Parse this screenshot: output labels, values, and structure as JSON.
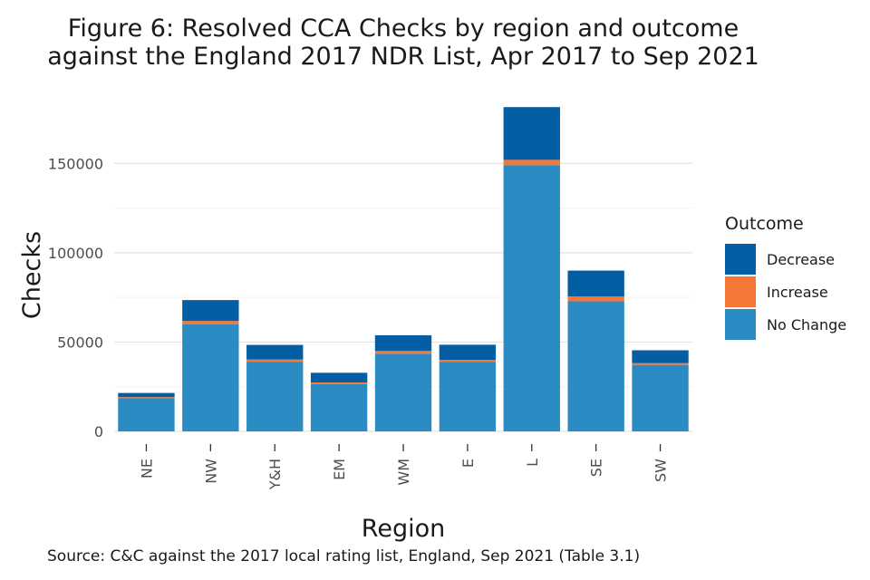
{
  "title_line1": "Figure 6: Resolved CCA Checks by region and outcome",
  "title_line2": "against the England 2017 NDR List, Apr 2017 to Sep 2021",
  "caption": "Source: C&C against the 2017 local rating list, England, Sep 2021 (Table 3.1)",
  "legend": {
    "title": "Outcome",
    "items": [
      {
        "label": "Decrease",
        "color": "#045ea4"
      },
      {
        "label": "Increase",
        "color": "#f47738"
      },
      {
        "label": "No Change",
        "color": "#2b8cc4"
      }
    ]
  },
  "chart_data": {
    "type": "bar",
    "stacked": true,
    "xlabel": "Region",
    "ylabel": "Checks",
    "ylim": [
      0,
      175000
    ],
    "yticks": [
      0,
      50000,
      100000,
      150000
    ],
    "ytick_labels": [
      "0",
      "50000",
      "100000",
      "150000"
    ],
    "grid": true,
    "legend_position": "right",
    "categories": [
      "NE",
      "NW",
      "Y&H",
      "EM",
      "WM",
      "E",
      "L",
      "SE",
      "SW"
    ],
    "series": [
      {
        "name": "No Change",
        "color": "#2b8cc4",
        "values": [
          18500,
          60000,
          39000,
          26500,
          43500,
          38800,
          149000,
          72800,
          37200
        ]
      },
      {
        "name": "Increase",
        "color": "#f47738",
        "values": [
          700,
          1800,
          1200,
          900,
          1500,
          1200,
          3000,
          2700,
          1000
        ]
      },
      {
        "name": "Decrease",
        "color": "#045ea4",
        "values": [
          2300,
          11700,
          8200,
          5400,
          8800,
          8500,
          29500,
          14500,
          7200
        ]
      }
    ]
  }
}
